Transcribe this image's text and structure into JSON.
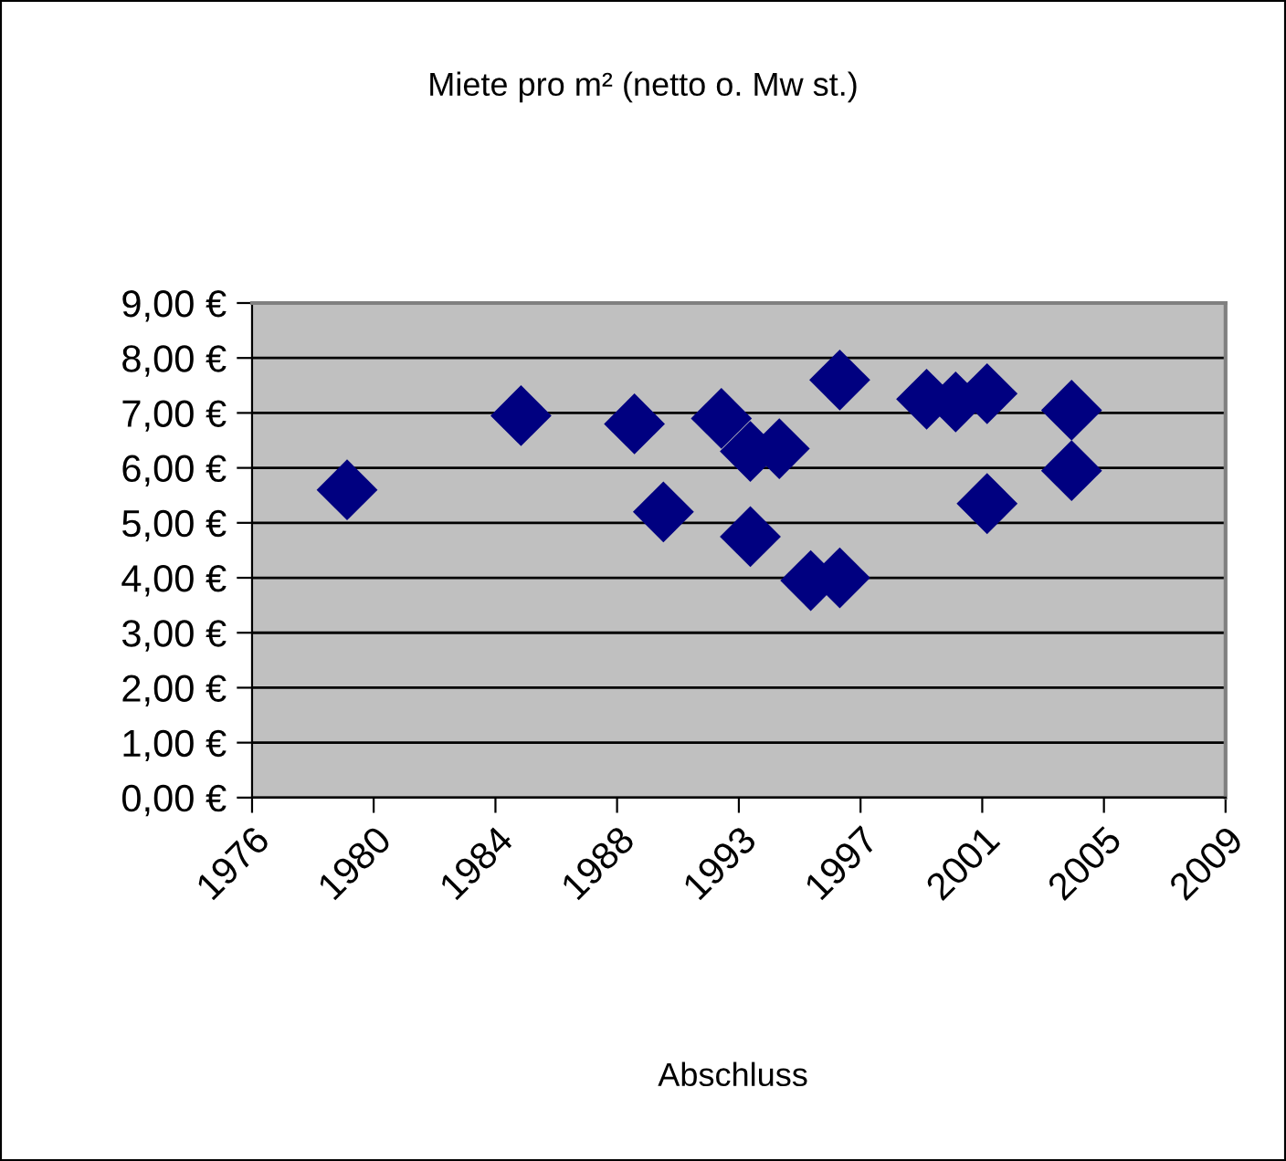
{
  "chart_data": {
    "type": "scatter",
    "title": "Miete pro m² (netto o. Mw st.)",
    "xlabel": "Abschluss",
    "x": [
      "1979-08",
      "1985-08",
      "1989-07",
      "1990-07",
      "1992-07",
      "1993-07",
      "1994-07",
      "1993-07",
      "1995-08",
      "1996-08",
      "1996-08",
      "1999-08",
      "2000-08",
      "2001-09",
      "2001-09",
      "2004-08",
      "2004-08"
    ],
    "values": [
      5.6,
      6.95,
      6.8,
      5.2,
      6.9,
      6.3,
      6.35,
      4.75,
      3.95,
      4.0,
      7.6,
      7.25,
      7.2,
      7.35,
      5.35,
      7.05,
      5.95
    ],
    "color": "#000080",
    "marker": "diamond",
    "xlim": [
      "1976-04-20",
      "2009-11-24"
    ],
    "xticks": [
      {
        "value": "1976-04-20",
        "label": "1976"
      },
      {
        "value": "1980-07-01",
        "label": "1980"
      },
      {
        "value": "1984-09-13",
        "label": "1984"
      },
      {
        "value": "1988-11-24",
        "label": "1988"
      },
      {
        "value": "1993-02-06",
        "label": "1993"
      },
      {
        "value": "1997-04-20",
        "label": "1997"
      },
      {
        "value": "2001-07-02",
        "label": "2001"
      },
      {
        "value": "2005-09-13",
        "label": "2005"
      },
      {
        "value": "2009-11-24",
        "label": "2009"
      }
    ],
    "ylim": [
      0,
      9
    ],
    "yticks": [
      {
        "value": 0,
        "label": "0,00 €"
      },
      {
        "value": 1,
        "label": "1,00 €"
      },
      {
        "value": 2,
        "label": "2,00 €"
      },
      {
        "value": 3,
        "label": "3,00 €"
      },
      {
        "value": 4,
        "label": "4,00 €"
      },
      {
        "value": 5,
        "label": "5,00 €"
      },
      {
        "value": 6,
        "label": "6,00 €"
      },
      {
        "value": 7,
        "label": "7,00 €"
      },
      {
        "value": 8,
        "label": "8,00 €"
      },
      {
        "value": 9,
        "label": "9,00 €"
      }
    ],
    "grid": "y",
    "legend": false
  }
}
